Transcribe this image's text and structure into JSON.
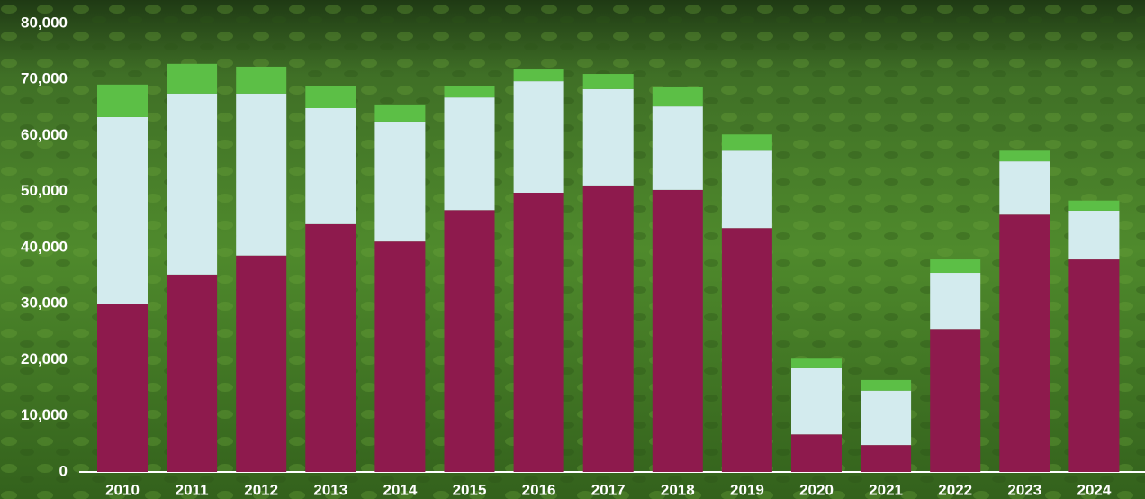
{
  "chart_data": {
    "type": "stacked_bar",
    "categories": [
      "2010",
      "2011",
      "2012",
      "2013",
      "2014",
      "2015",
      "2016",
      "2017",
      "2018",
      "2019",
      "2020",
      "2021",
      "2022",
      "2023",
      "2024"
    ],
    "series": [
      {
        "color": "#8e1a4d",
        "values": [
          30000,
          35200,
          38600,
          44200,
          41100,
          46700,
          49800,
          51100,
          50300,
          43500,
          6700,
          4800,
          25500,
          45900,
          37900
        ]
      },
      {
        "color": "#d3ebee",
        "values": [
          33300,
          32300,
          28900,
          20700,
          21400,
          20100,
          19900,
          17200,
          14900,
          13800,
          11800,
          9700,
          10000,
          9500,
          8700
        ]
      },
      {
        "color": "#5cbf46",
        "values": [
          5800,
          5300,
          4800,
          4000,
          2900,
          2100,
          2100,
          2700,
          3400,
          2900,
          1700,
          1900,
          2400,
          1900,
          1800
        ]
      }
    ],
    "ylim": [
      0,
      80000
    ],
    "yticks": [
      0,
      {
        "value": 10000,
        "label": "10,000"
      },
      {
        "value": 20000,
        "label": "20,000"
      },
      {
        "value": 30000,
        "label": "30,000"
      },
      {
        "value": 40000,
        "label": "40,000"
      },
      {
        "value": 50000,
        "label": "50,000"
      },
      {
        "value": 60000,
        "label": "60,000"
      },
      {
        "value": 70000,
        "label": "70,000"
      },
      {
        "value": 80000,
        "label": "80,000"
      }
    ]
  }
}
